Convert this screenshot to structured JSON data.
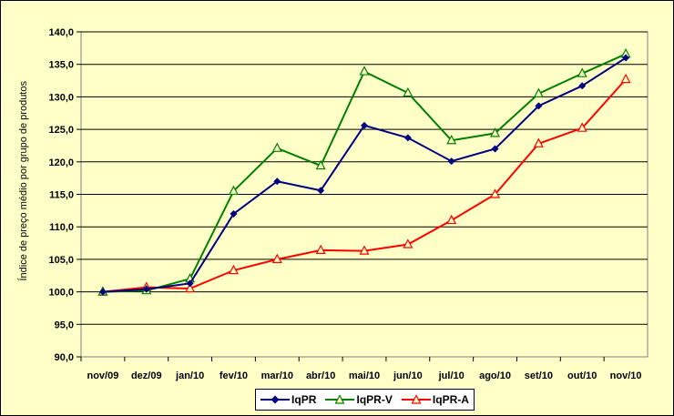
{
  "chart_data": {
    "type": "line",
    "title": "",
    "xlabel": "",
    "ylabel": "Índice de preço médio por grupo de produtos",
    "ylim": [
      90,
      140
    ],
    "y_ticks": [
      "90,0",
      "95,0",
      "100,0",
      "105,0",
      "110,0",
      "115,0",
      "120,0",
      "125,0",
      "130,0",
      "135,0",
      "140,0"
    ],
    "grid": "horizontal",
    "legend_position": "bottom",
    "categories": [
      "nov/09",
      "dez/09",
      "jan/10",
      "fev/10",
      "mar/10",
      "abr/10",
      "mai/10",
      "jun/10",
      "jul/10",
      "ago/10",
      "set/10",
      "out/10",
      "nov/10"
    ],
    "series": [
      {
        "name": "IqPR",
        "color": "#000080",
        "marker": "diamond",
        "values": [
          100.0,
          100.4,
          101.3,
          112.0,
          117.0,
          115.6,
          125.6,
          123.7,
          120.1,
          122.0,
          128.6,
          131.7,
          136.0
        ]
      },
      {
        "name": "IqPR-V",
        "color": "#008000",
        "marker": "triangle",
        "values": [
          100.0,
          100.2,
          102.0,
          115.5,
          122.1,
          119.4,
          133.9,
          130.6,
          123.3,
          124.4,
          130.5,
          133.6,
          136.6
        ]
      },
      {
        "name": "IqPR-A",
        "color": "#FF0000",
        "marker": "triangle",
        "values": [
          100.0,
          100.7,
          100.5,
          103.3,
          105.0,
          106.4,
          106.3,
          107.3,
          111.0,
          115.0,
          122.8,
          125.2,
          132.7
        ]
      }
    ]
  }
}
